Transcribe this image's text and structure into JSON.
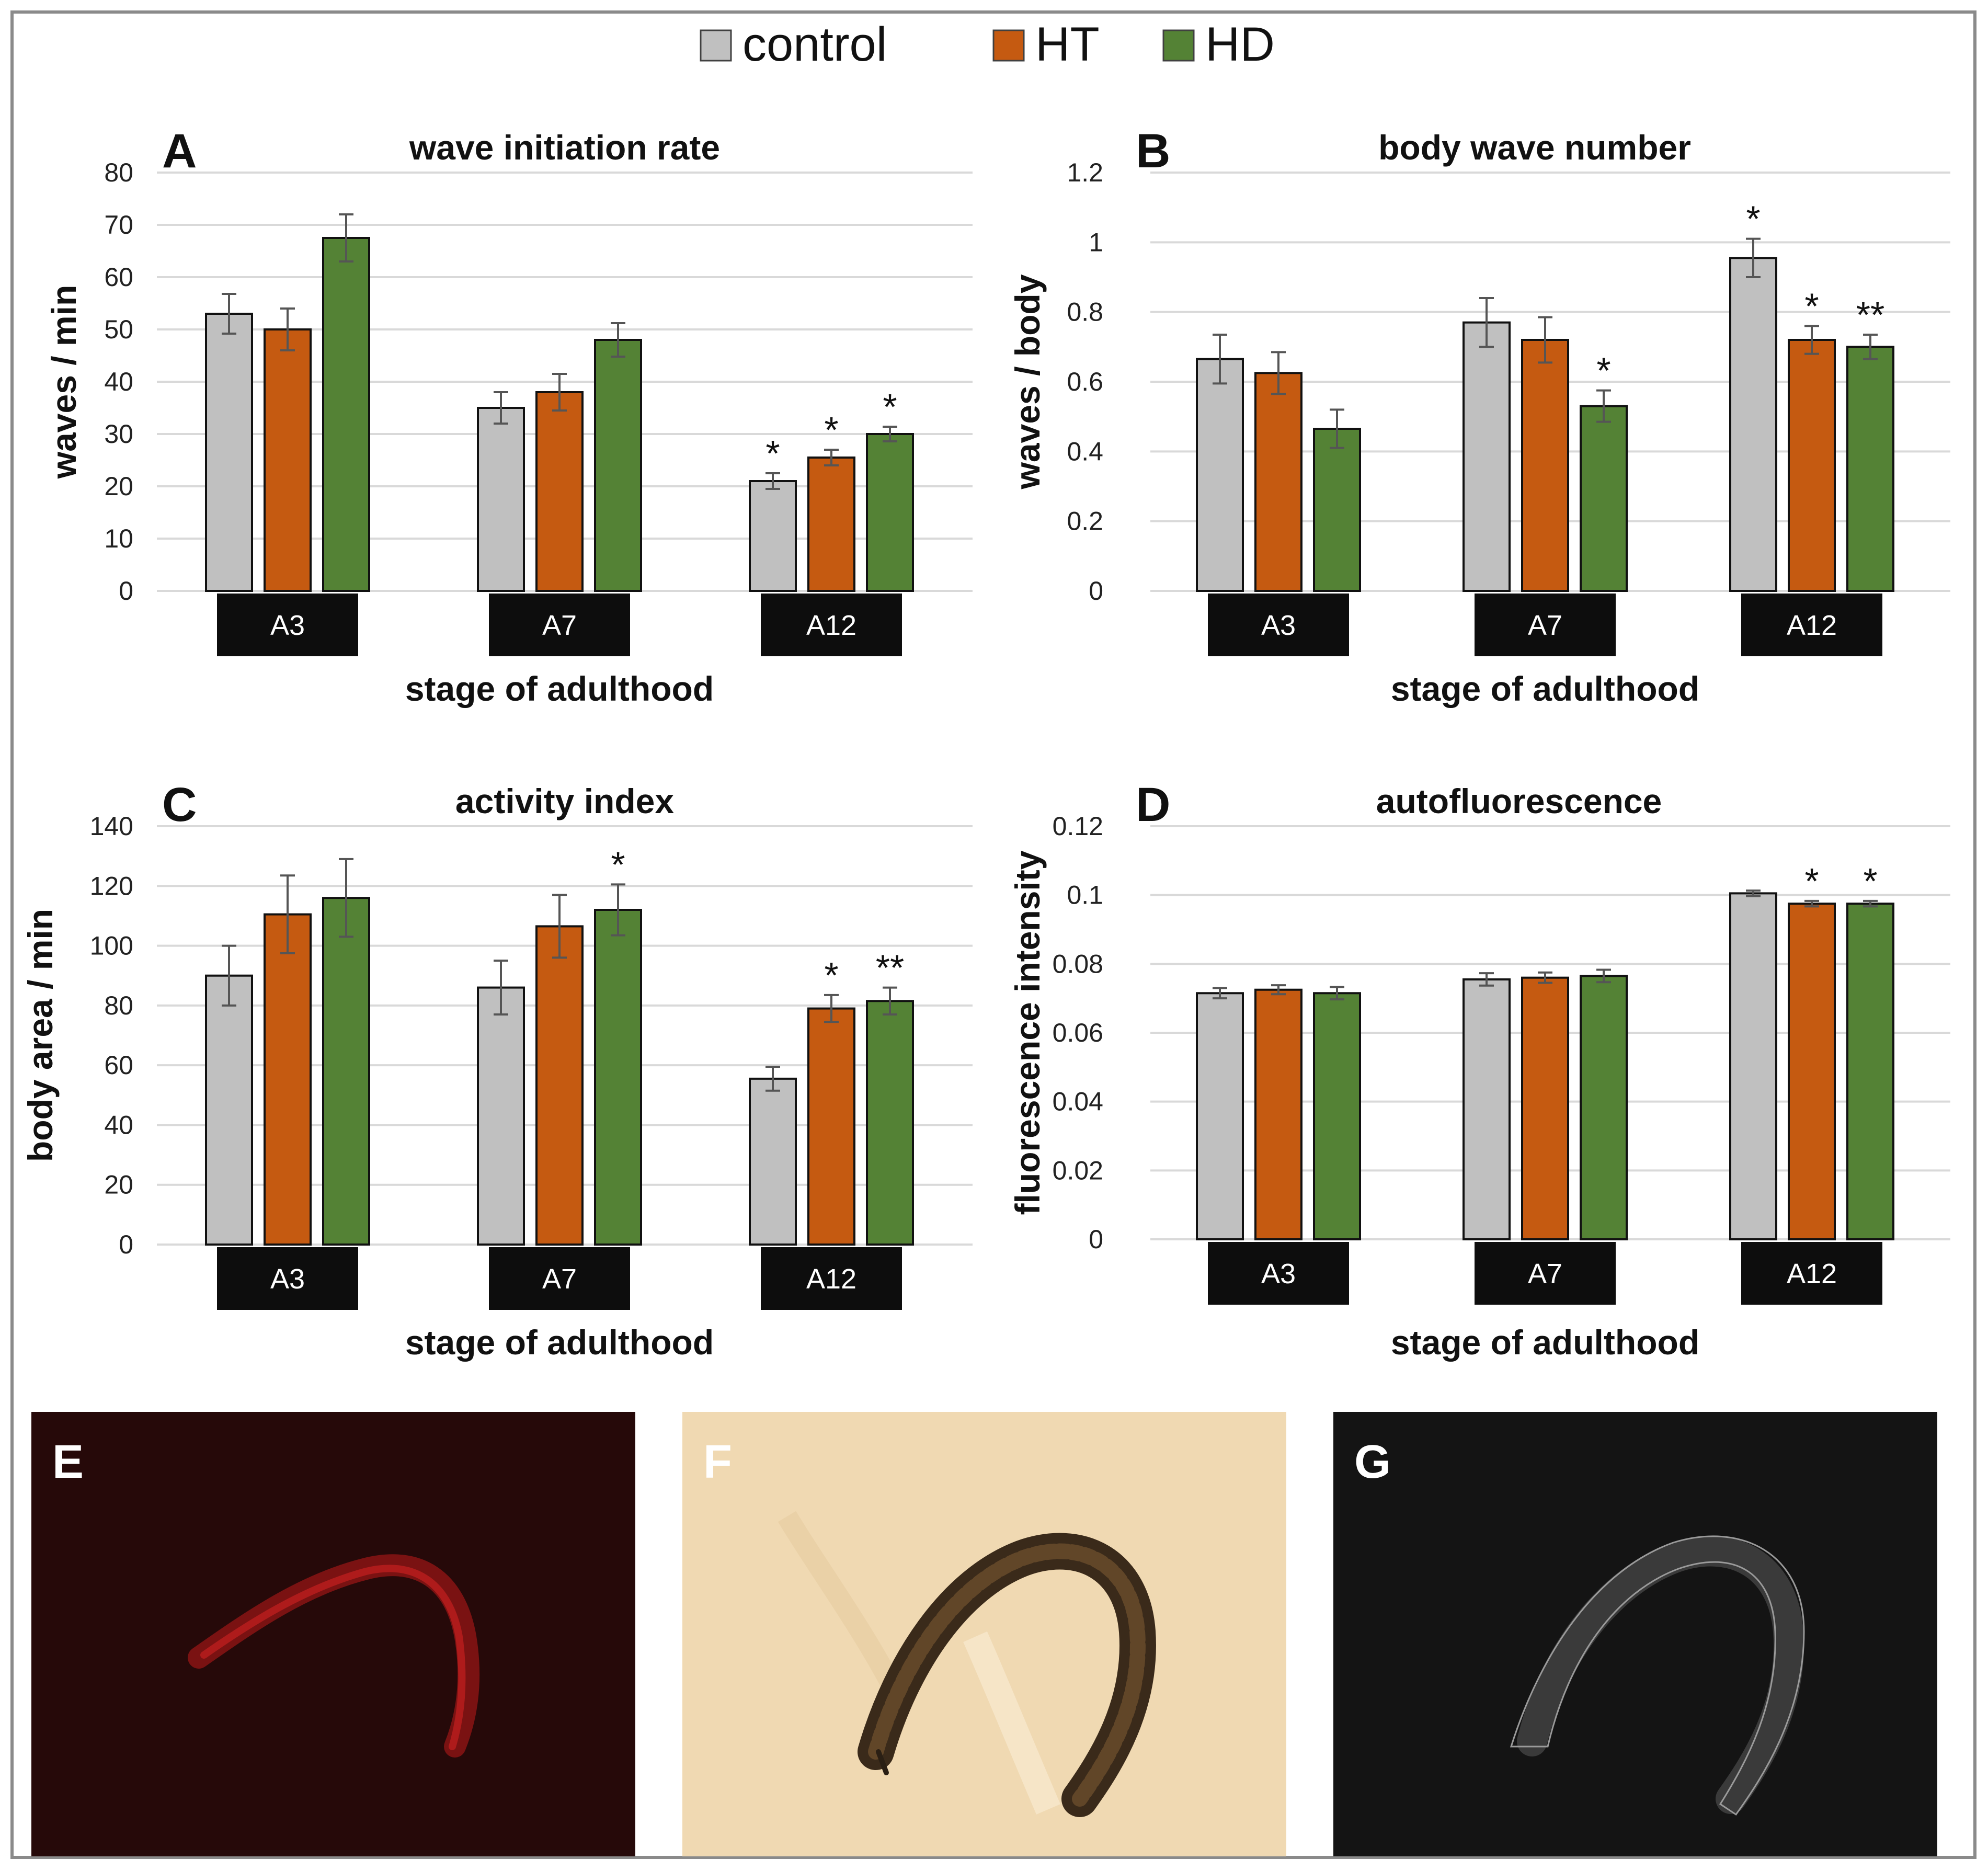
{
  "legend": [
    {
      "name": "control",
      "color": "#c0c0c0"
    },
    {
      "name": "HT",
      "color": "#c55a11"
    },
    {
      "name": "HD",
      "color": "#548235"
    }
  ],
  "chart_data": [
    {
      "panel": "A",
      "type": "bar",
      "title": "wave initiation rate",
      "ylabel": "waves / min",
      "xlabel": "stage of adulthood",
      "categories": [
        "A3",
        "A7",
        "A12"
      ],
      "ylim": [
        0,
        80
      ],
      "yticks": [
        0,
        10,
        20,
        30,
        40,
        50,
        60,
        70,
        80
      ],
      "yticklabels": [
        "0",
        "10",
        "20",
        "30",
        "40",
        "50",
        "60",
        "70",
        "80"
      ],
      "series": [
        {
          "name": "control",
          "values": [
            53,
            35,
            21
          ],
          "errors": [
            3.8,
            3,
            1.5
          ]
        },
        {
          "name": "HT",
          "values": [
            50,
            38,
            25.5
          ],
          "errors": [
            4,
            3.5,
            1.5
          ]
        },
        {
          "name": "HD",
          "values": [
            67.5,
            48,
            30
          ],
          "errors": [
            4.5,
            3.2,
            1.4
          ]
        }
      ],
      "significance": [
        [
          "",
          "",
          "*"
        ],
        [
          "",
          "",
          "*"
        ],
        [
          "",
          "",
          "*"
        ]
      ]
    },
    {
      "panel": "B",
      "type": "bar",
      "title": "body wave number",
      "ylabel": "waves / body",
      "xlabel": "stage of adulthood",
      "categories": [
        "A3",
        "A7",
        "A12"
      ],
      "ylim": [
        0,
        1.2
      ],
      "yticks": [
        0,
        0.2,
        0.4,
        0.6,
        0.8,
        1,
        1.2
      ],
      "yticklabels": [
        "0",
        "0.2",
        "0.4",
        "0.6",
        "0.8",
        "1",
        "1.2"
      ],
      "series": [
        {
          "name": "control",
          "values": [
            0.665,
            0.77,
            0.955
          ],
          "errors": [
            0.07,
            0.07,
            0.055
          ]
        },
        {
          "name": "HT",
          "values": [
            0.625,
            0.72,
            0.72
          ],
          "errors": [
            0.06,
            0.065,
            0.04
          ]
        },
        {
          "name": "HD",
          "values": [
            0.465,
            0.53,
            0.7
          ],
          "errors": [
            0.055,
            0.045,
            0.035
          ]
        }
      ],
      "significance": [
        [
          "",
          "",
          "*"
        ],
        [
          "",
          "",
          "*"
        ],
        [
          "",
          "*",
          "**"
        ]
      ]
    },
    {
      "panel": "C",
      "type": "bar",
      "title": "activity index",
      "ylabel": "body area / min",
      "xlabel": "stage of adulthood",
      "categories": [
        "A3",
        "A7",
        "A12"
      ],
      "ylim": [
        0,
        140
      ],
      "yticks": [
        0,
        20,
        40,
        60,
        80,
        100,
        120,
        140
      ],
      "yticklabels": [
        "0",
        "20",
        "40",
        "60",
        "80",
        "100",
        "120",
        "140"
      ],
      "series": [
        {
          "name": "control",
          "values": [
            90,
            86,
            55.5
          ],
          "errors": [
            10,
            9,
            4
          ]
        },
        {
          "name": "HT",
          "values": [
            110.5,
            106.5,
            79
          ],
          "errors": [
            13,
            10.5,
            4.5
          ]
        },
        {
          "name": "HD",
          "values": [
            116,
            112,
            81.5
          ],
          "errors": [
            13,
            8.5,
            4.5
          ]
        }
      ],
      "significance": [
        [
          "",
          "",
          ""
        ],
        [
          "",
          "",
          "*"
        ],
        [
          "",
          "*",
          "**"
        ]
      ]
    },
    {
      "panel": "D",
      "type": "bar",
      "title": "autofluorescence",
      "ylabel": "fluorescence intensity",
      "xlabel": "stage of adulthood",
      "categories": [
        "A3",
        "A7",
        "A12"
      ],
      "ylim": [
        0,
        0.12
      ],
      "yticks": [
        0,
        0.02,
        0.04,
        0.06,
        0.08,
        0.1,
        0.12
      ],
      "yticklabels": [
        "0",
        "0.02",
        "0.04",
        "0.06",
        "0.08",
        "0.1",
        "0.12"
      ],
      "series": [
        {
          "name": "control",
          "values": [
            0.0715,
            0.0755,
            0.1005
          ],
          "errors": [
            0.0015,
            0.0018,
            0.0008
          ]
        },
        {
          "name": "HT",
          "values": [
            0.0725,
            0.076,
            0.0975
          ],
          "errors": [
            0.0013,
            0.0015,
            0.0008
          ]
        },
        {
          "name": "HD",
          "values": [
            0.0715,
            0.0765,
            0.0975
          ],
          "errors": [
            0.0018,
            0.0018,
            0.0008
          ]
        }
      ],
      "significance": [
        [
          "",
          "",
          ""
        ],
        [
          "",
          "",
          "*"
        ],
        [
          "",
          "",
          "*"
        ]
      ]
    }
  ],
  "images": [
    {
      "label": "E"
    },
    {
      "label": "F"
    },
    {
      "label": "G"
    }
  ]
}
